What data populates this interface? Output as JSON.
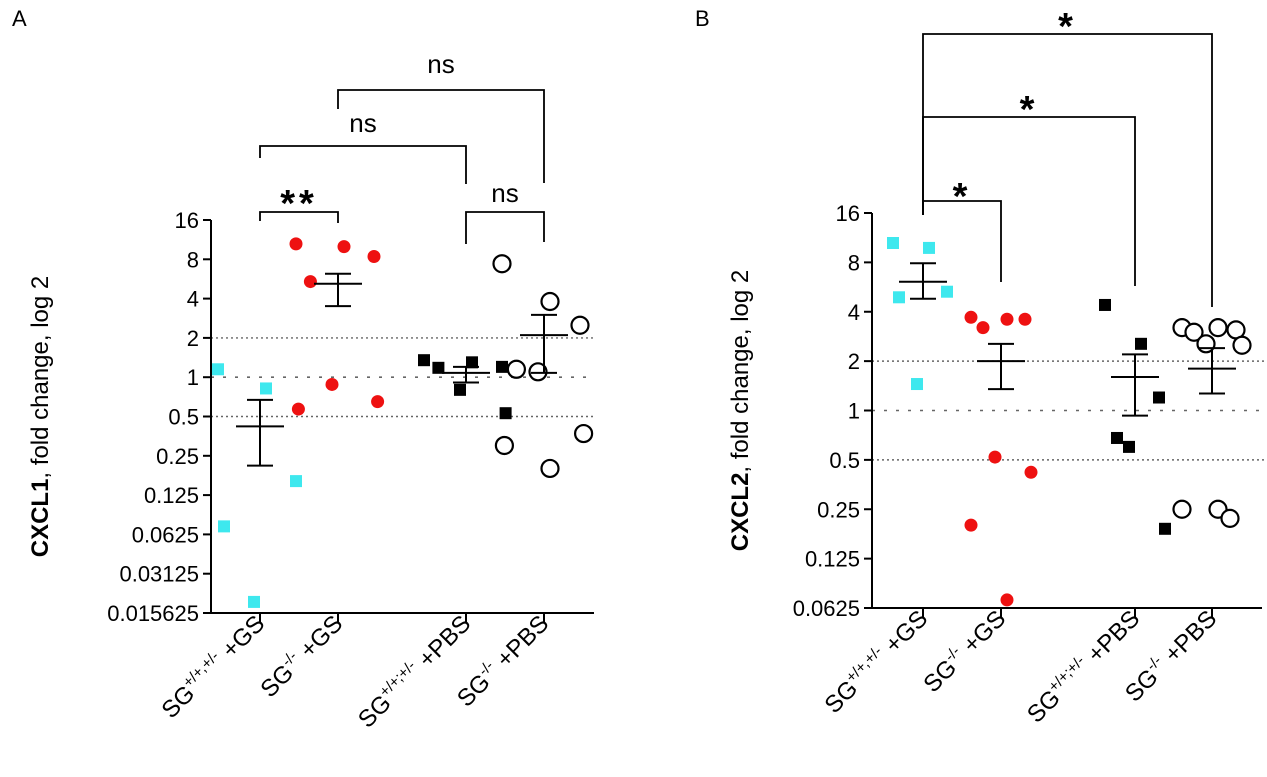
{
  "chart_data": [
    {
      "panel": "A",
      "type": "scatter",
      "scale": "log2",
      "ylabel_bold": "CXCL1",
      "ylabel_rest": ", fold change, log 2",
      "yticks": [
        16,
        8,
        4,
        2,
        1,
        0.5,
        0.25,
        0.125,
        0.0625,
        0.03125,
        0.015625
      ],
      "ytick_labels": [
        "16",
        "8",
        "4",
        "2",
        "1",
        "0.5",
        "0.25",
        "0.125",
        "0.0625",
        "0.03125",
        "0.015625"
      ],
      "ylim": [
        0.015625,
        16
      ],
      "reference_lines": [
        2,
        1,
        0.5
      ],
      "groups": [
        {
          "label_base": "SG",
          "label_sup": "+/+,+/-",
          "label_rest": " +GS",
          "marker": "square",
          "color": "#3ee8ee",
          "filled": true,
          "values": [
            1.15,
            0.82,
            0.16,
            0.072,
            0.019
          ],
          "mean": 0.42,
          "sem_low": 0.21,
          "sem_high": 0.67
        },
        {
          "label_base": "SG",
          "label_sup": "-/-",
          "label_rest": " +GS",
          "marker": "circle",
          "color": "#ee1111",
          "filled": true,
          "values": [
            10.5,
            10.0,
            8.4,
            5.4,
            0.88,
            0.65,
            0.57
          ],
          "mean": 5.2,
          "sem_low": 3.5,
          "sem_high": 6.2
        },
        {
          "label_base": "SG",
          "label_sup": "+/+;+/-",
          "label_rest": " +PBS",
          "marker": "square",
          "color": "#000000",
          "filled": true,
          "values": [
            1.35,
            1.3,
            1.2,
            1.18,
            0.8,
            0.53
          ],
          "mean": 1.08,
          "sem_low": 0.91,
          "sem_high": 1.2
        },
        {
          "label_base": "SG",
          "label_sup": "-/-",
          "label_rest": " +PBS",
          "marker": "circle",
          "color": "#000000",
          "filled": false,
          "values": [
            7.4,
            3.8,
            2.5,
            1.15,
            1.1,
            0.37,
            0.3,
            0.2
          ],
          "mean": 2.1,
          "sem_low": 1.08,
          "sem_high": 3.0
        }
      ],
      "comparisons": [
        {
          "from": 0,
          "to": 1,
          "label": "**"
        },
        {
          "from": 0,
          "to": 2,
          "label": "ns"
        },
        {
          "from": 1,
          "to": 3,
          "label": "ns"
        },
        {
          "from": 2,
          "to": 3,
          "label": "ns"
        }
      ]
    },
    {
      "panel": "B",
      "type": "scatter",
      "scale": "log2",
      "ylabel_bold": "CXCL2",
      "ylabel_rest": ", fold change, log 2",
      "yticks": [
        16,
        8,
        4,
        2,
        1,
        0.5,
        0.25,
        0.125,
        0.0625
      ],
      "ytick_labels": [
        "16",
        "8",
        "4",
        "2",
        "1",
        "0.5",
        "0.25",
        "0.125",
        "0.0625"
      ],
      "ylim": [
        0.0625,
        16
      ],
      "reference_lines": [
        2,
        1,
        0.5
      ],
      "groups": [
        {
          "label_base": "SG",
          "label_sup": "+/+,+/-",
          "label_rest": " +GS",
          "marker": "square",
          "color": "#3ee8ee",
          "filled": true,
          "values": [
            10.5,
            9.8,
            5.3,
            4.9,
            1.45
          ],
          "mean": 6.1,
          "sem_low": 4.8,
          "sem_high": 7.9
        },
        {
          "label_base": "SG",
          "label_sup": "-/-",
          "label_rest": " +GS",
          "marker": "circle",
          "color": "#ee1111",
          "filled": true,
          "values": [
            3.7,
            3.6,
            3.6,
            3.2,
            0.52,
            0.42,
            0.2,
            0.07
          ],
          "mean": 2.0,
          "sem_low": 1.35,
          "sem_high": 2.55
        },
        {
          "label_base": "SG",
          "label_sup": "+/+;+/-",
          "label_rest": " +PBS",
          "marker": "square",
          "color": "#000000",
          "filled": true,
          "values": [
            4.4,
            2.55,
            1.2,
            0.68,
            0.6,
            0.19
          ],
          "mean": 1.6,
          "sem_low": 0.93,
          "sem_high": 2.2
        },
        {
          "label_base": "SG",
          "label_sup": "-/-",
          "label_rest": " +PBS",
          "marker": "circle",
          "color": "#000000",
          "filled": false,
          "values": [
            3.2,
            3.2,
            3.1,
            3.0,
            2.55,
            2.5,
            0.25,
            0.25,
            0.22
          ],
          "mean": 1.8,
          "sem_low": 1.27,
          "sem_high": 2.4
        }
      ],
      "comparisons": [
        {
          "from": 0,
          "to": 1,
          "label": "*"
        },
        {
          "from": 0,
          "to": 2,
          "label": "*"
        },
        {
          "from": 0,
          "to": 3,
          "label": "*"
        }
      ]
    }
  ]
}
